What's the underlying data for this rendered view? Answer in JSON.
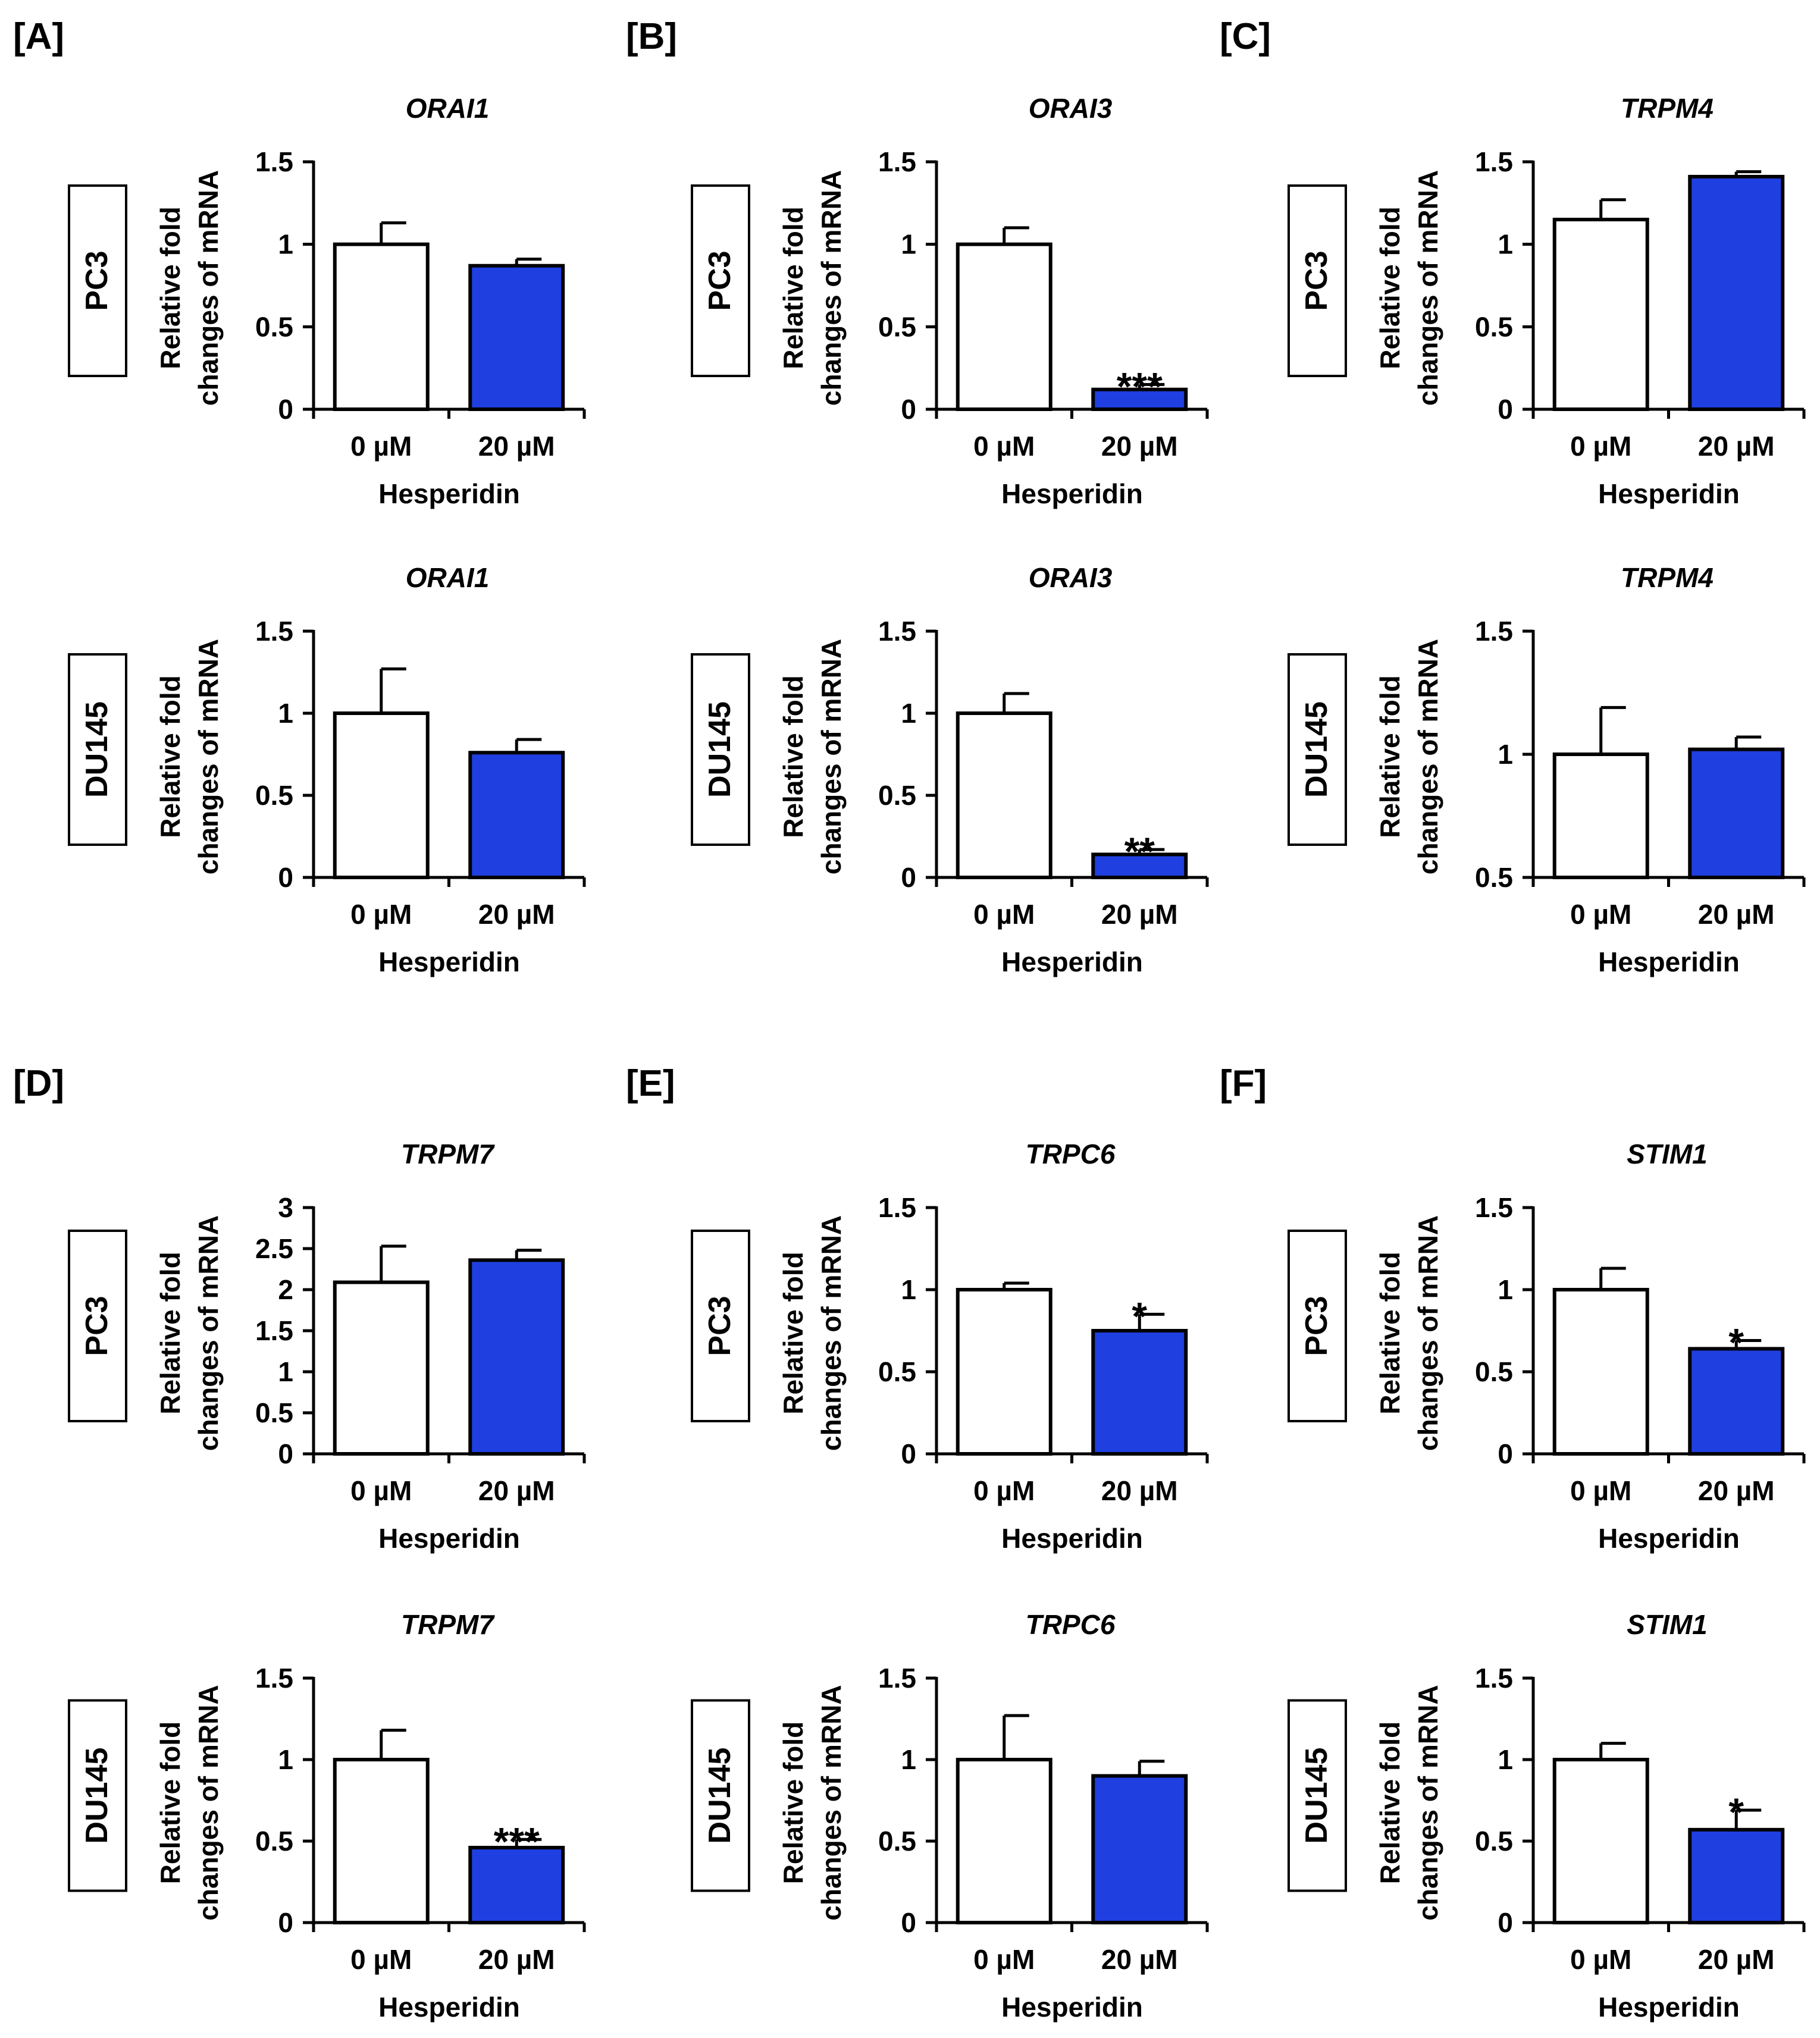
{
  "figure": {
    "panel_labels": [
      "[A]",
      "[B]",
      "[C]",
      "[D]",
      "[E]",
      "[F]"
    ],
    "ylabel_line1": "Relative fold",
    "ylabel_line2": "changes of mRNA",
    "xlabel": "Hesperidin"
  },
  "colors": {
    "treated": "#1F3FE0",
    "control": "#FFFFFF",
    "stroke": "#000000"
  },
  "chart_data": [
    {
      "id": "A-PC3",
      "type": "bar",
      "panel": "[A]",
      "cell_line": "PC3",
      "title": "ORAI1",
      "categories": [
        "0 µM",
        "20 µM"
      ],
      "values": [
        1.0,
        0.87
      ],
      "errors": [
        0.13,
        0.04
      ],
      "significance": [
        "",
        ""
      ],
      "ylim": [
        0,
        1.5
      ],
      "yticks": [
        0,
        0.5,
        1,
        1.5
      ],
      "ytick_labels": [
        "0",
        "0.5",
        "1",
        "1.5"
      ],
      "xlabel": "Hesperidin",
      "ylabel": "Relative fold changes of mRNA"
    },
    {
      "id": "B-PC3",
      "type": "bar",
      "panel": "[B]",
      "cell_line": "PC3",
      "title": "ORAI3",
      "categories": [
        "0 µM",
        "20 µM"
      ],
      "values": [
        1.0,
        0.12
      ],
      "errors": [
        0.1,
        0.03
      ],
      "significance": [
        "",
        "***"
      ],
      "ylim": [
        0,
        1.5
      ],
      "yticks": [
        0,
        0.5,
        1,
        1.5
      ],
      "ytick_labels": [
        "0",
        "0.5",
        "1",
        "1.5"
      ],
      "xlabel": "Hesperidin",
      "ylabel": "Relative fold changes of mRNA"
    },
    {
      "id": "C-PC3",
      "type": "bar",
      "panel": "[C]",
      "cell_line": "PC3",
      "title": "TRPM4",
      "categories": [
        "0 µM",
        "20 µM"
      ],
      "values": [
        1.15,
        1.41
      ],
      "errors": [
        0.12,
        0.03
      ],
      "significance": [
        "",
        ""
      ],
      "ylim": [
        0,
        1.5
      ],
      "yticks": [
        0,
        0.5,
        1,
        1.5
      ],
      "ytick_labels": [
        "0",
        "0.5",
        "1",
        "1.5"
      ],
      "xlabel": "Hesperidin",
      "ylabel": "Relative fold changes of mRNA"
    },
    {
      "id": "A-DU145",
      "type": "bar",
      "panel": "[A]",
      "cell_line": "DU145",
      "title": "ORAI1",
      "categories": [
        "0 µM",
        "20 µM"
      ],
      "values": [
        1.0,
        0.76
      ],
      "errors": [
        0.27,
        0.08
      ],
      "significance": [
        "",
        ""
      ],
      "ylim": [
        0,
        1.5
      ],
      "yticks": [
        0,
        0.5,
        1,
        1.5
      ],
      "ytick_labels": [
        "0",
        "0.5",
        "1",
        "1.5"
      ],
      "xlabel": "Hesperidin",
      "ylabel": "Relative fold changes of mRNA"
    },
    {
      "id": "B-DU145",
      "type": "bar",
      "panel": "[B]",
      "cell_line": "DU145",
      "title": "ORAI3",
      "categories": [
        "0 µM",
        "20 µM"
      ],
      "values": [
        1.0,
        0.14
      ],
      "errors": [
        0.12,
        0.03
      ],
      "significance": [
        "",
        "**"
      ],
      "ylim": [
        0,
        1.5
      ],
      "yticks": [
        0,
        0.5,
        1,
        1.5
      ],
      "ytick_labels": [
        "0",
        "0.5",
        "1",
        "1.5"
      ],
      "xlabel": "Hesperidin",
      "ylabel": "Relative fold changes of mRNA"
    },
    {
      "id": "C-DU145",
      "type": "bar",
      "panel": "[C]",
      "cell_line": "DU145",
      "title": "TRPM4",
      "categories": [
        "0 µM",
        "20 µM"
      ],
      "values": [
        1.0,
        1.02
      ],
      "errors": [
        0.19,
        0.05
      ],
      "significance": [
        "",
        ""
      ],
      "ylim": [
        0.5,
        1.5
      ],
      "yticks": [
        0.5,
        1,
        1.5
      ],
      "ytick_labels": [
        "0.5",
        "1",
        "1.5"
      ],
      "xlabel": "Hesperidin",
      "ylabel": "Relative fold changes of mRNA"
    },
    {
      "id": "D-PC3",
      "type": "bar",
      "panel": "[D]",
      "cell_line": "PC3",
      "title": "TRPM7",
      "categories": [
        "0 µM",
        "20 µM"
      ],
      "values": [
        2.09,
        2.36
      ],
      "errors": [
        0.44,
        0.12
      ],
      "significance": [
        "",
        ""
      ],
      "ylim": [
        0,
        3
      ],
      "yticks": [
        0,
        0.5,
        1,
        1.5,
        2,
        2.5,
        3
      ],
      "ytick_labels": [
        "0",
        "0.5",
        "1",
        "1.5",
        "2",
        "2.5",
        "3"
      ],
      "xlabel": "Hesperidin",
      "ylabel": "Relative fold changes of mRNA"
    },
    {
      "id": "E-PC3",
      "type": "bar",
      "panel": "[E]",
      "cell_line": "PC3",
      "title": "TRPC6",
      "categories": [
        "0 µM",
        "20 µM"
      ],
      "values": [
        1.0,
        0.75
      ],
      "errors": [
        0.04,
        0.1
      ],
      "significance": [
        "",
        "*"
      ],
      "ylim": [
        0,
        1.5
      ],
      "yticks": [
        0,
        0.5,
        1,
        1.5
      ],
      "ytick_labels": [
        "0",
        "0.5",
        "1",
        "1.5"
      ],
      "xlabel": "Hesperidin",
      "ylabel": "Relative fold changes of mRNA"
    },
    {
      "id": "F-PC3",
      "type": "bar",
      "panel": "[F]",
      "cell_line": "PC3",
      "title": "STIM1",
      "categories": [
        "0 µM",
        "20 µM"
      ],
      "values": [
        1.0,
        0.64
      ],
      "errors": [
        0.13,
        0.05
      ],
      "significance": [
        "",
        "*"
      ],
      "ylim": [
        0,
        1.5
      ],
      "yticks": [
        0,
        0.5,
        1,
        1.5
      ],
      "ytick_labels": [
        "0",
        "0.5",
        "1",
        "1.5"
      ],
      "xlabel": "Hesperidin",
      "ylabel": "Relative fold changes of mRNA"
    },
    {
      "id": "D-DU145",
      "type": "bar",
      "panel": "[D]",
      "cell_line": "DU145",
      "title": "TRPM7",
      "categories": [
        "0 µM",
        "20 µM"
      ],
      "values": [
        1.0,
        0.46
      ],
      "errors": [
        0.18,
        0.05
      ],
      "significance": [
        "",
        "***"
      ],
      "ylim": [
        0,
        1.5
      ],
      "yticks": [
        0,
        0.5,
        1,
        1.5
      ],
      "ytick_labels": [
        "0",
        "0.5",
        "1",
        "1.5"
      ],
      "xlabel": "Hesperidin",
      "ylabel": "Relative fold changes of mRNA"
    },
    {
      "id": "E-DU145",
      "type": "bar",
      "panel": "[E]",
      "cell_line": "DU145",
      "title": "TRPC6",
      "categories": [
        "0 µM",
        "20 µM"
      ],
      "values": [
        1.0,
        0.9
      ],
      "errors": [
        0.27,
        0.09
      ],
      "significance": [
        "",
        ""
      ],
      "ylim": [
        0,
        1.5
      ],
      "yticks": [
        0,
        0.5,
        1,
        1.5
      ],
      "ytick_labels": [
        "0",
        "0.5",
        "1",
        "1.5"
      ],
      "xlabel": "Hesperidin",
      "ylabel": "Relative fold changes of mRNA"
    },
    {
      "id": "F-DU145",
      "type": "bar",
      "panel": "[F]",
      "cell_line": "DU145",
      "title": "STIM1",
      "categories": [
        "0 µM",
        "20 µM"
      ],
      "values": [
        1.0,
        0.57
      ],
      "errors": [
        0.1,
        0.12
      ],
      "significance": [
        "",
        "*"
      ],
      "ylim": [
        0,
        1.5
      ],
      "yticks": [
        0,
        0.5,
        1,
        1.5
      ],
      "ytick_labels": [
        "0",
        "0.5",
        "1",
        "1.5"
      ],
      "xlabel": "Hesperidin",
      "ylabel": "Relative fold changes of mRNA"
    }
  ]
}
